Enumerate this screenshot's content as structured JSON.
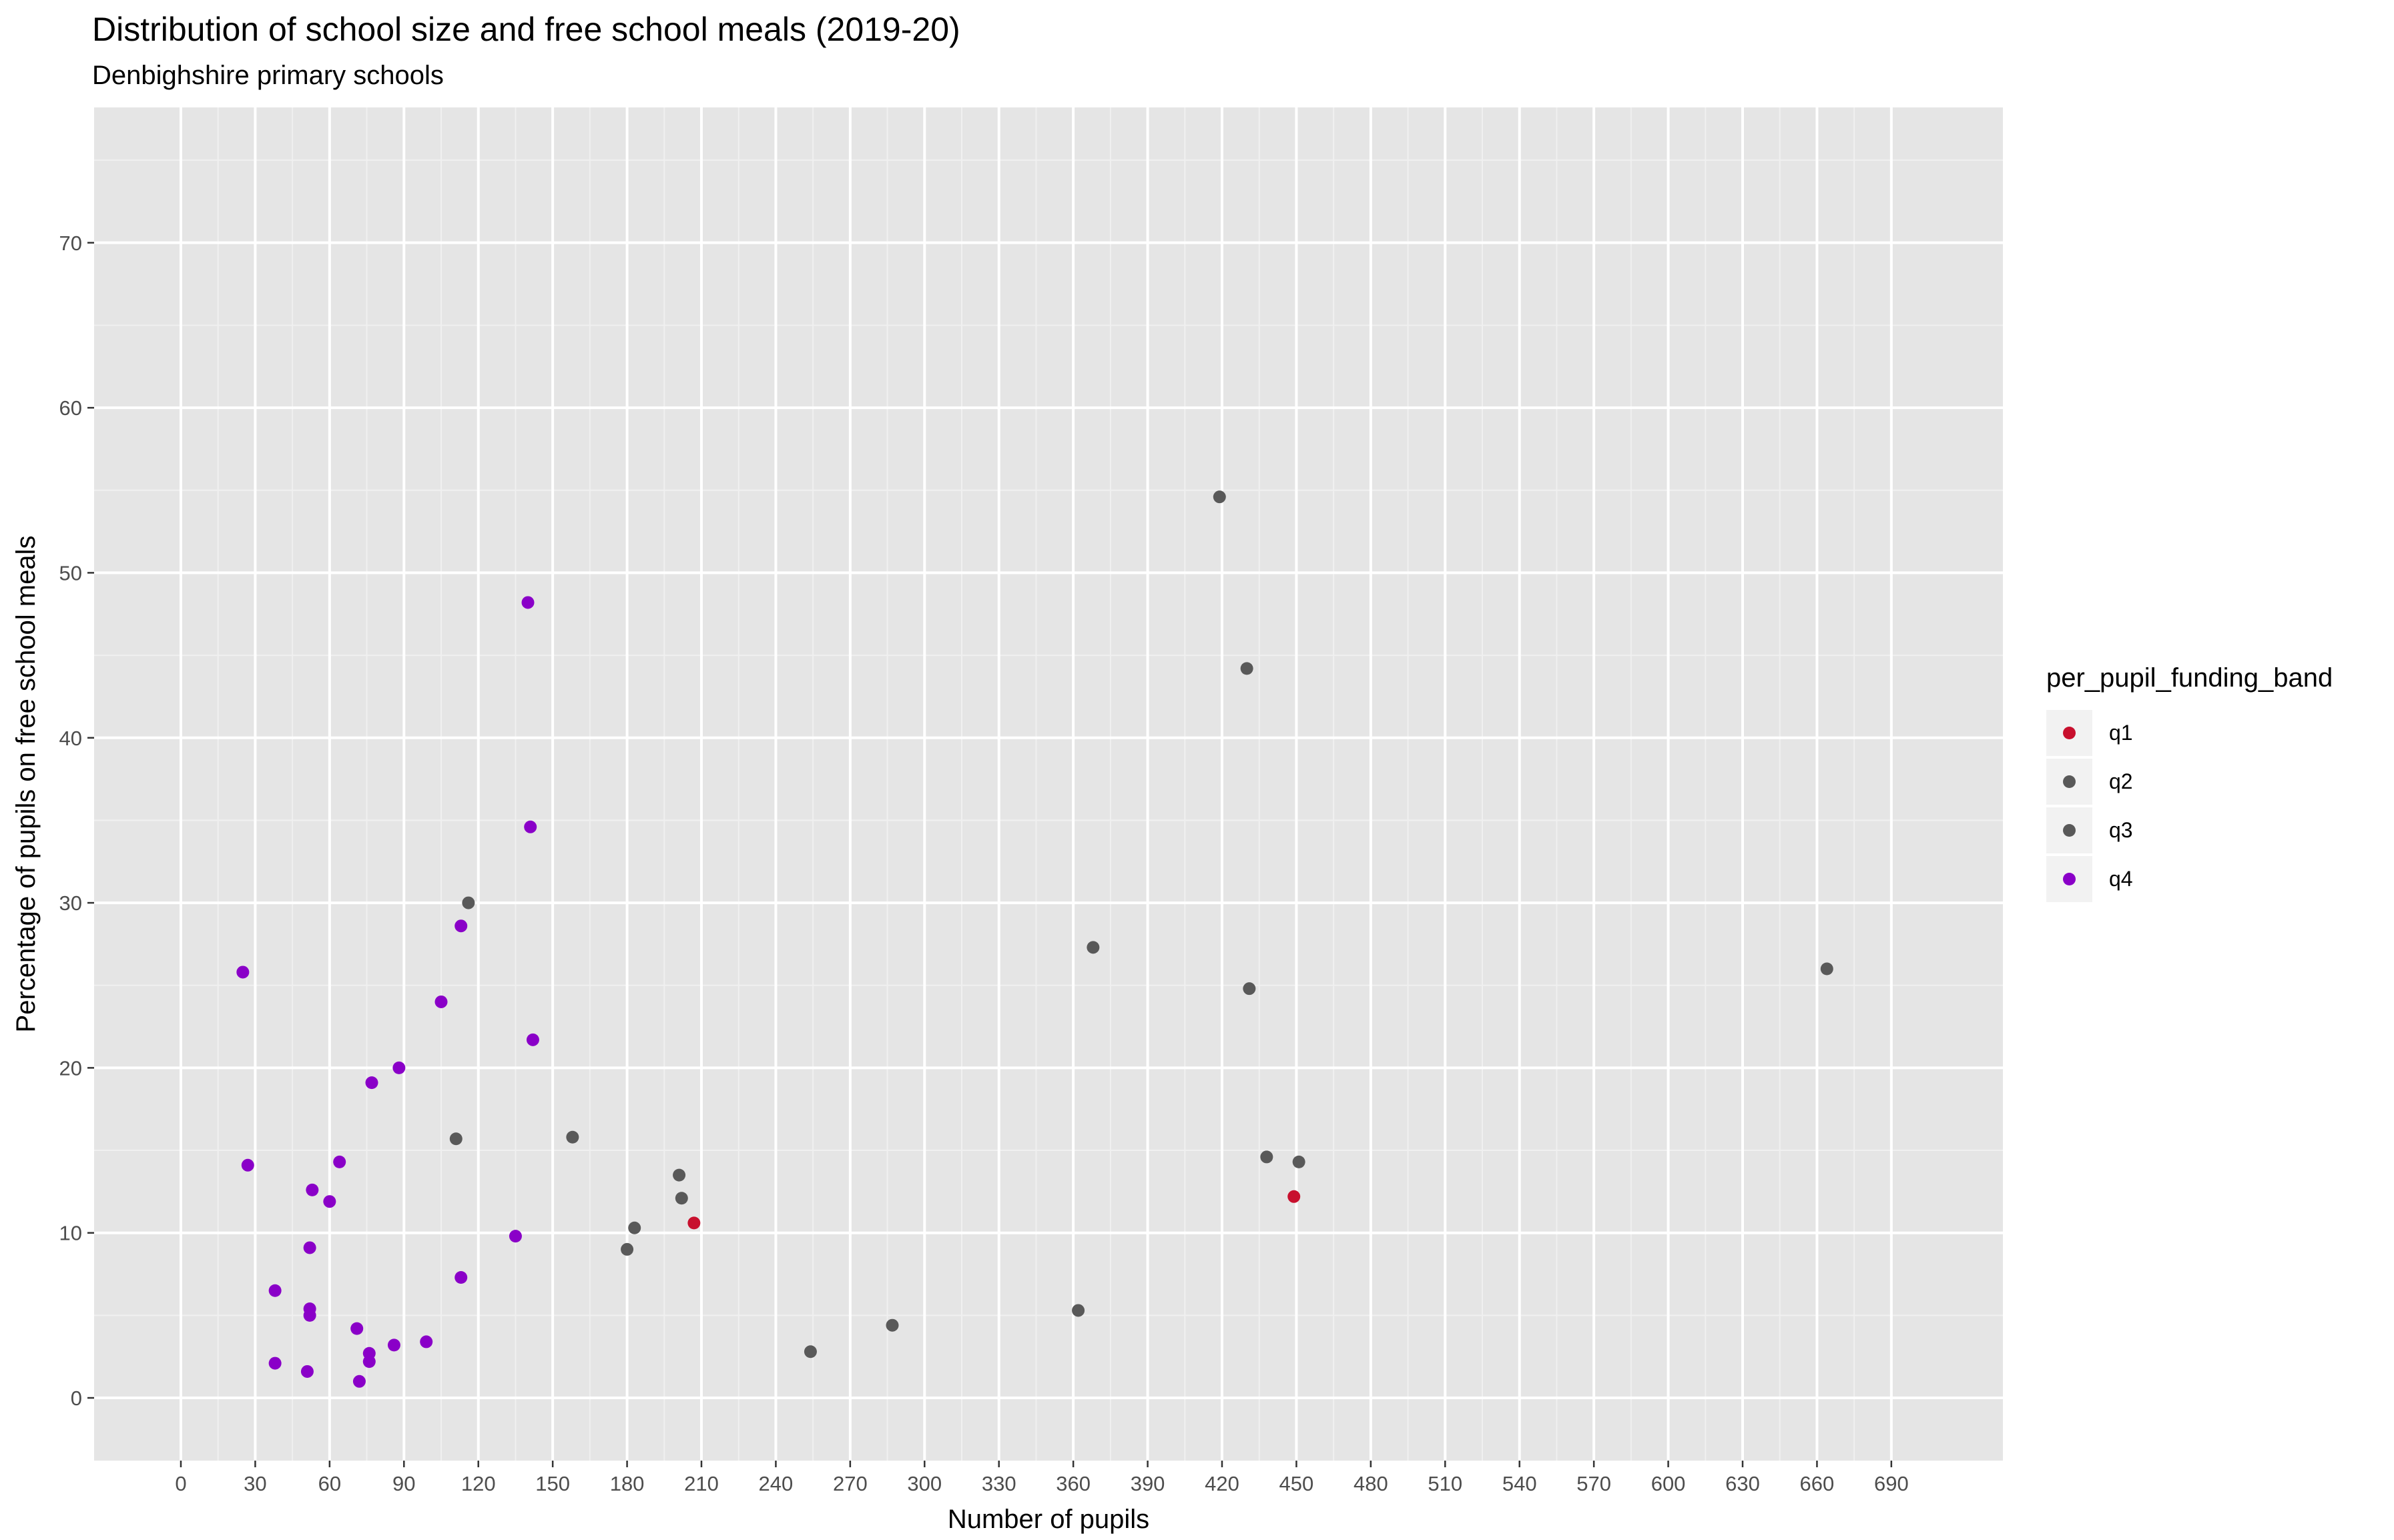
{
  "chart_data": {
    "type": "scatter",
    "title": "Distribution of school size and free school meals (2019-20)",
    "subtitle": "Denbighshire primary schools",
    "xlabel": "Number of pupils",
    "ylabel": "Percentage of pupils on free school meals",
    "xlim": [
      -35,
      735
    ],
    "ylim": [
      -3.8,
      78.2
    ],
    "x_ticks": [
      0,
      30,
      60,
      90,
      120,
      150,
      180,
      210,
      240,
      270,
      300,
      330,
      360,
      390,
      420,
      450,
      480,
      510,
      540,
      570,
      600,
      630,
      660,
      690
    ],
    "y_ticks": [
      0,
      10,
      20,
      30,
      40,
      50,
      60,
      70
    ],
    "grid": true,
    "legend": {
      "title": "per_pupil_funding_band",
      "position": "right",
      "entries": [
        {
          "label": "q1",
          "color": "#c8102e"
        },
        {
          "label": "q2",
          "color": "#595959"
        },
        {
          "label": "q3",
          "color": "#595959"
        },
        {
          "label": "q4",
          "color": "#8a00c8"
        }
      ]
    },
    "series": [
      {
        "name": "q1",
        "color": "#c8102e",
        "points": [
          [
            207,
            10.6
          ],
          [
            449,
            12.2
          ]
        ]
      },
      {
        "name": "q2/q3",
        "color": "#595959",
        "points": [
          [
            419,
            54.6
          ],
          [
            430,
            44.2
          ],
          [
            116,
            30.0
          ],
          [
            368,
            27.3
          ],
          [
            664,
            26.0
          ],
          [
            431,
            24.8
          ],
          [
            111,
            15.7
          ],
          [
            158,
            15.8
          ],
          [
            201,
            13.5
          ],
          [
            202,
            12.1
          ],
          [
            183,
            10.3
          ],
          [
            180,
            9.0
          ],
          [
            438,
            14.6
          ],
          [
            451,
            14.3
          ],
          [
            254,
            2.8
          ],
          [
            287,
            4.4
          ],
          [
            362,
            5.3
          ]
        ]
      },
      {
        "name": "q4",
        "color": "#8a00c8",
        "points": [
          [
            140,
            48.2
          ],
          [
            141,
            34.6
          ],
          [
            113,
            28.6
          ],
          [
            25,
            25.8
          ],
          [
            105,
            24.0
          ],
          [
            142,
            21.7
          ],
          [
            88,
            20.0
          ],
          [
            77,
            19.1
          ],
          [
            64,
            14.3
          ],
          [
            27,
            14.1
          ],
          [
            53,
            12.6
          ],
          [
            60,
            11.9
          ],
          [
            135,
            9.8
          ],
          [
            52,
            9.1
          ],
          [
            113,
            7.3
          ],
          [
            38,
            6.5
          ],
          [
            52,
            5.4
          ],
          [
            52,
            5.0
          ],
          [
            71,
            4.2
          ],
          [
            99,
            3.4
          ],
          [
            86,
            3.2
          ],
          [
            76,
            2.7
          ],
          [
            76,
            2.2
          ],
          [
            38,
            2.1
          ],
          [
            51,
            1.6
          ],
          [
            72,
            1.0
          ]
        ]
      }
    ]
  }
}
